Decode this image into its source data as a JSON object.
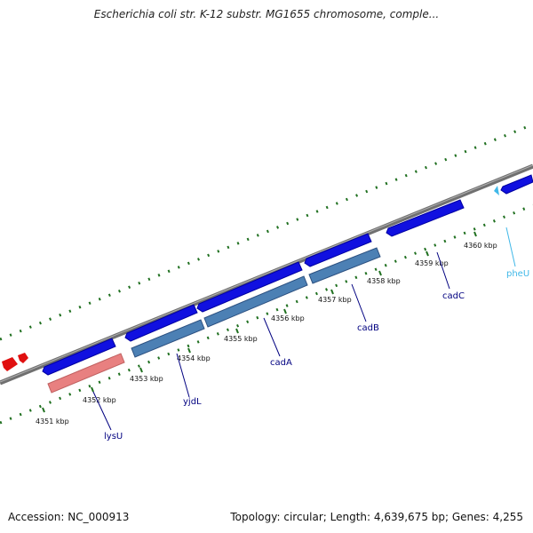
{
  "title": "Escherichia coli str. K-12 substr. MG1655 chromosome, comple...",
  "footer": {
    "accession": "Accession: NC_000913",
    "summary": "Topology: circular; Length: 4,639,675 bp; Genes: 4,255"
  },
  "colors": {
    "backbone": "#808080",
    "gene_cds": "#0000e0",
    "gene_cds_dark": "#0000a8",
    "gene_rna": "#e02020",
    "gene_trna": "#40b8e8",
    "cds_feature": "#4c80b4",
    "repeat_feature": "#e88080",
    "tick": "#207020",
    "label": "#000080"
  },
  "ticks": [
    {
      "label": "4351 kbp"
    },
    {
      "label": "4352 kbp"
    },
    {
      "label": "4353 kbp"
    },
    {
      "label": "4354 kbp"
    },
    {
      "label": "4355 kbp"
    },
    {
      "label": "4356 kbp"
    },
    {
      "label": "4357 kbp"
    },
    {
      "label": "4358 kbp"
    },
    {
      "label": "4359 kbp"
    },
    {
      "label": "4360 kbp"
    }
  ],
  "genes": [
    {
      "name": "lysU",
      "color": "#000080"
    },
    {
      "name": "yjdL",
      "color": "#000080"
    },
    {
      "name": "cadA",
      "color": "#000080"
    },
    {
      "name": "cadB",
      "color": "#000080"
    },
    {
      "name": "cadC",
      "color": "#000080"
    },
    {
      "name": "pheU",
      "color": "#40b8e8"
    }
  ]
}
